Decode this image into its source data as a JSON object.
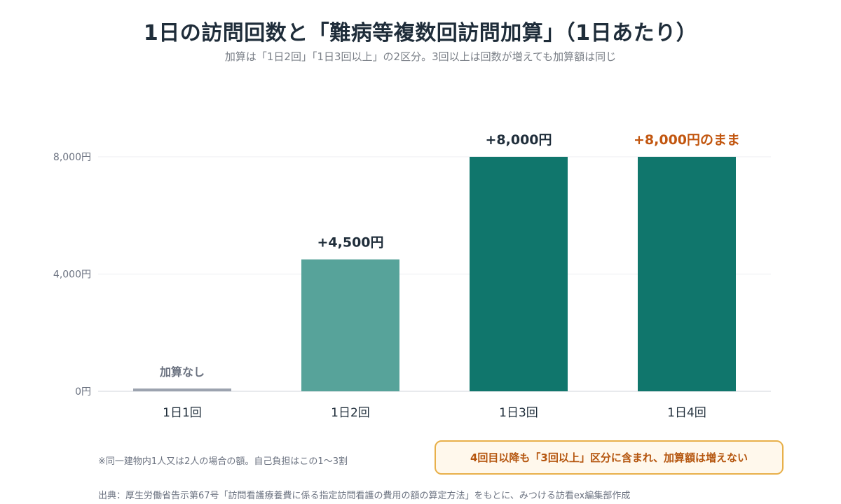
{
  "title": "1日の訪問回数と「難病等複数回訪問加算」（1日あたり）",
  "subtitle": "加算は「1日2回」「1日3回以上」の2区分。3回以上は回数が増えても加算額は同じ",
  "colors": {
    "bar_dark": "#10766c",
    "bar_light": "#57a39a",
    "bar_none": "#9ca3af",
    "accent": "#c2560f",
    "label": "#1f2d3a",
    "muted": "#6b7280"
  },
  "chart_data": {
    "type": "bar",
    "categories": [
      "1日1回",
      "1日2回",
      "1日3回",
      "1日4回"
    ],
    "values": [
      0,
      4500,
      8000,
      8000
    ],
    "data_labels": [
      "加算なし",
      "+4,500円",
      "+8,000円",
      "+8,000円のまま"
    ],
    "bar_colors": [
      "#9ca3af",
      "#57a39a",
      "#10766c",
      "#10766c"
    ],
    "label_colors": [
      "#6b7280",
      "#1f2d3a",
      "#1f2d3a",
      "#c2560f"
    ],
    "y_ticks": [
      "0円",
      "4,000円",
      "8,000円"
    ],
    "y_tick_values": [
      0,
      4000,
      8000
    ],
    "ylim": [
      0,
      8000
    ],
    "grid": true
  },
  "note": "※同一建物内1人又は2人の場合の額。自己負担はこの1〜3割",
  "callout": "4回目以降も「3回以上」区分に含まれ、加算額は増えない",
  "source": "出典：厚生労働省告示第67号「訪問看護療養費に係る指定訪問看護の費用の額の算定方法」をもとに、みつける訪看ex編集部作成"
}
